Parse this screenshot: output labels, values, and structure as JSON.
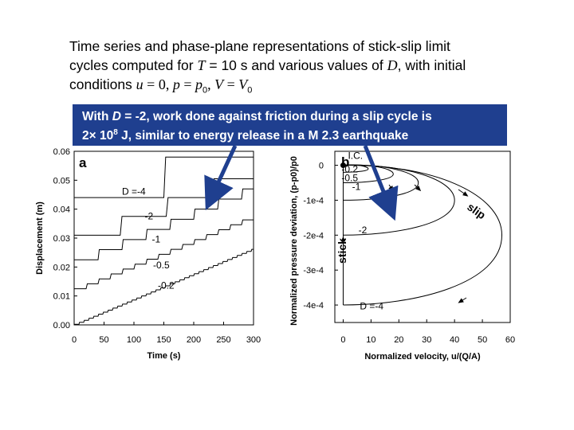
{
  "caption": {
    "line1": "Time series and phase-plane representations of stick-slip limit",
    "line2_a": "cycles computed for ",
    "line2_T": "T",
    "line2_b": " = 10 s and various values of ",
    "line2_D": "D",
    "line2_c": ", with initial",
    "line3_a": "conditions ",
    "line3_u": "u",
    "line3_b": " = 0, ",
    "line3_p": "p",
    "line3_c": " = ",
    "line3_p0": "p",
    "line3_sub0": "0",
    "line3_d": ", ",
    "line3_V": "V",
    "line3_e": " = ",
    "line3_V0": "V",
    "line3_sub1": "0"
  },
  "callout": {
    "line1_a": "With ",
    "line1_D": "D",
    "line1_b": " = -2, work done against friction during a slip cycle is",
    "line2_a": "2× 10",
    "line2_exp": "8",
    "line2_b": " J, similar to energy release in a M 2.3 earthquake",
    "arrow_color": "#1f3f8f"
  },
  "chart_data": [
    {
      "type": "line",
      "panel_label": "a",
      "xlabel": "Time (s)",
      "ylabel": "Displacement (m)",
      "xlim": [
        0,
        300
      ],
      "ylim": [
        0,
        0.06
      ],
      "x_ticks": [
        "0",
        "50",
        "100",
        "150",
        "200",
        "250",
        "300"
      ],
      "y_ticks": [
        "0.00",
        "0.01",
        "0.02",
        "0.03",
        "0.04",
        "0.05",
        "0.06"
      ],
      "series": [
        {
          "name": "D =-4",
          "label": "D =-4",
          "label_at": [
            80,
            0.045
          ],
          "start": 0.044,
          "step_height": 0.014,
          "period": 150,
          "slip_duration": 3,
          "slip_times": [
            0,
            150,
            300
          ]
        },
        {
          "name": "-2",
          "label": "-2",
          "label_at": [
            118,
            0.0365
          ],
          "start": 0.031,
          "step_height": 0.0065,
          "period": 77,
          "slip_duration": 3,
          "slip_times": [
            0,
            77,
            154,
            231
          ]
        },
        {
          "name": "-1",
          "label": "-1",
          "label_at": [
            130,
            0.0285
          ],
          "start": 0.0225,
          "step_height": 0.0035,
          "period": 40,
          "slip_duration": 2,
          "slip_times": [
            0,
            40,
            80,
            120,
            160,
            200,
            240,
            280
          ]
        },
        {
          "name": "-0.5",
          "label": "-0.5",
          "label_at": [
            132,
            0.0195
          ],
          "start": 0.0125,
          "step_height": 0.0017,
          "period": 20,
          "slip_duration": 2,
          "slip_times": [
            0,
            20,
            40,
            60,
            80,
            100,
            120,
            140,
            160,
            180,
            200,
            220,
            240,
            260,
            280,
            300
          ]
        },
        {
          "name": "-0.2",
          "label": "-0.2",
          "label_at": [
            140,
            0.0125
          ],
          "start": 0.0002,
          "step_height": 0.0007,
          "period": 8,
          "slip_duration": 1,
          "slip_times": []
        }
      ]
    },
    {
      "type": "line",
      "panel_label": "b",
      "xlabel": "Normalized velocity, u/(Q/A)",
      "ylabel": "Normalized pressure deviation, (p-p0)/p0",
      "xlim": [
        -3,
        60
      ],
      "ylim": [
        -0.00045,
        4e-05
      ],
      "x_ticks": [
        "0",
        "10",
        "20",
        "30",
        "40",
        "50",
        "60"
      ],
      "y_ticks": [
        "0",
        "-1e-4",
        "-2e-4",
        "-3e-4",
        "-4e-4"
      ],
      "annotations": {
        "ic": "I.C.",
        "stick": "stick",
        "slip": "slip"
      },
      "series": [
        {
          "name": "D =-4",
          "label": "D =-4",
          "label_at": [
            6,
            -0.000412
          ],
          "v_max": 57,
          "p_min": -0.0004
        },
        {
          "name": "-2",
          "label": "-2",
          "label_at": [
            5.5,
            -0.000195
          ],
          "v_max": 40,
          "p_min": -0.0002
        },
        {
          "name": "-1",
          "label": "-1",
          "label_at": [
            3.2,
            -7e-05
          ],
          "v_max": 27,
          "p_min": -0.0001
        },
        {
          "name": "-0.5",
          "label": "-0.5",
          "label_at": [
            -0.6,
            -4.5e-05
          ],
          "v_max": 18,
          "p_min": -5e-05
        },
        {
          "name": "-0.2",
          "label": "-0.2",
          "label_at": [
            -0.6,
            -2e-05
          ],
          "v_max": 9,
          "p_min": -2e-05
        }
      ]
    }
  ]
}
